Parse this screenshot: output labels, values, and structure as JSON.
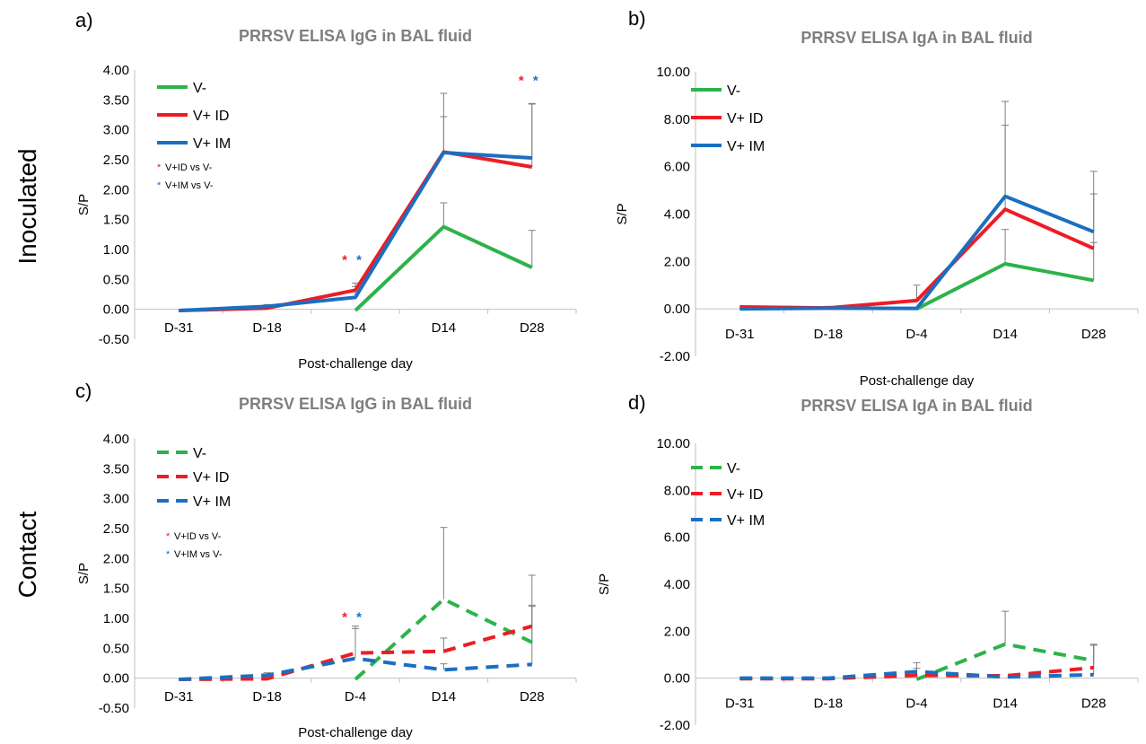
{
  "colors": {
    "V-": "#2db34a",
    "V+ ID": "#ee1c25",
    "V+ IM": "#1a6fc0",
    "axis": "#bfbfbf",
    "error": "#7f7f7f",
    "title": "#7f7f7f"
  },
  "row_labels": [
    "Inoculated",
    "Contact"
  ],
  "chart_data": [
    {
      "panel": "a)",
      "type": "line",
      "title": "PRRSV ELISA IgG in BAL fluid",
      "xlabel": "Post-challenge day",
      "ylabel": "S/P",
      "categories": [
        "D-31",
        "D-18",
        "D-4",
        "D14",
        "D28"
      ],
      "ylim": [
        -0.5,
        4.0
      ],
      "yticks": [
        "-0.50",
        "0.00",
        "0.50",
        "1.00",
        "1.50",
        "2.00",
        "2.50",
        "3.00",
        "3.50",
        "4.00"
      ],
      "line_style": "solid",
      "legend_position": "top-left",
      "series": [
        {
          "name": "V-",
          "values": [
            null,
            null,
            -0.02,
            1.38,
            0.7
          ],
          "errors": [
            null,
            null,
            null,
            0.4,
            0.62
          ]
        },
        {
          "name": "V+ ID",
          "values": [
            -0.02,
            0.02,
            0.32,
            2.63,
            2.38
          ],
          "errors": [
            null,
            null,
            0.12,
            0.98,
            1.06
          ]
        },
        {
          "name": "V+ IM",
          "values": [
            -0.02,
            0.05,
            0.2,
            2.62,
            2.53
          ],
          "errors": [
            null,
            0.03,
            0.18,
            0.6,
            0.9
          ]
        }
      ],
      "annotations": [
        {
          "symbol": "*",
          "color": "#ee1c25",
          "text": "V+ID vs V-"
        },
        {
          "symbol": "*",
          "color": "#1a6fc0",
          "text": "V+IM vs V-"
        }
      ],
      "stars": [
        {
          "category": "D-4",
          "y": 0.75
        },
        {
          "category": "D28",
          "y": 3.75
        }
      ]
    },
    {
      "panel": "b)",
      "type": "line",
      "title": "PRRSV ELISA IgA in BAL fluid",
      "xlabel": "Post-challenge day",
      "ylabel": "S/P",
      "categories": [
        "D-31",
        "D-18",
        "D-4",
        "D14",
        "D28"
      ],
      "ylim": [
        -2.0,
        10.0
      ],
      "yticks": [
        "-2.00",
        "0.00",
        "2.00",
        "4.00",
        "6.00",
        "8.00",
        "10.00"
      ],
      "line_style": "solid",
      "legend_position": "top-left",
      "series": [
        {
          "name": "V-",
          "values": [
            null,
            null,
            0.0,
            1.9,
            1.2
          ],
          "errors": [
            null,
            null,
            null,
            1.45,
            1.6
          ]
        },
        {
          "name": "V+ ID",
          "values": [
            0.08,
            0.04,
            0.35,
            4.2,
            2.55
          ],
          "errors": [
            null,
            null,
            0.65,
            3.55,
            2.3
          ]
        },
        {
          "name": "V+ IM",
          "values": [
            0.0,
            0.03,
            0.02,
            4.75,
            3.25
          ],
          "errors": [
            null,
            0.08,
            null,
            4.0,
            2.55
          ]
        }
      ],
      "annotations": [],
      "stars": []
    },
    {
      "panel": "c)",
      "type": "line",
      "title": "PRRSV ELISA IgG in BAL fluid",
      "xlabel": "Post-challenge day",
      "ylabel": "S/P",
      "categories": [
        "D-31",
        "D-18",
        "D-4",
        "D14",
        "D28"
      ],
      "ylim": [
        -0.5,
        4.0
      ],
      "yticks": [
        "-0.50",
        "0.00",
        "0.50",
        "1.00",
        "1.50",
        "2.00",
        "2.50",
        "3.00",
        "3.50",
        "4.00"
      ],
      "line_style": "dashed",
      "legend_position": "top-left",
      "series": [
        {
          "name": "V-",
          "values": [
            null,
            null,
            -0.02,
            1.32,
            0.6
          ],
          "errors": [
            null,
            null,
            null,
            1.2,
            1.12
          ]
        },
        {
          "name": "V+ ID",
          "values": [
            -0.02,
            -0.01,
            0.42,
            0.45,
            0.87
          ],
          "errors": [
            null,
            null,
            0.45,
            0.22,
            0.35
          ]
        },
        {
          "name": "V+ IM",
          "values": [
            -0.02,
            0.05,
            0.33,
            0.14,
            0.23
          ],
          "errors": [
            null,
            0.04,
            0.5,
            0.1,
            0.97
          ]
        }
      ],
      "annotations": [
        {
          "symbol": "*",
          "color": "#ee1c25",
          "text": "V+ID vs V-"
        },
        {
          "symbol": "*",
          "color": "#1a6fc0",
          "text": "V+IM vs V-"
        }
      ],
      "stars": [
        {
          "category": "D-4",
          "y": 0.95
        }
      ]
    },
    {
      "panel": "d)",
      "type": "line",
      "title": "PRRSV ELISA IgA in BAL fluid",
      "xlabel": "Post-challenge day",
      "ylabel": "S/P",
      "categories": [
        "D-31",
        "D-18",
        "D-4",
        "D14",
        "D28"
      ],
      "ylim": [
        -2.0,
        10.0
      ],
      "yticks": [
        "-2.00",
        "0.00",
        "2.00",
        "4.00",
        "6.00",
        "8.00",
        "10.00"
      ],
      "line_style": "dashed",
      "legend_position": "top-left",
      "series": [
        {
          "name": "V-",
          "values": [
            null,
            null,
            -0.05,
            1.45,
            0.75
          ],
          "errors": [
            null,
            null,
            null,
            1.4,
            0.7
          ]
        },
        {
          "name": "V+ ID",
          "values": [
            -0.02,
            -0.02,
            0.12,
            0.1,
            0.45
          ],
          "errors": [
            null,
            null,
            0.3,
            null,
            0.95
          ]
        },
        {
          "name": "V+ IM",
          "values": [
            0.0,
            0.0,
            0.28,
            0.05,
            0.15
          ],
          "errors": [
            null,
            null,
            0.38,
            null,
            1.25
          ]
        }
      ],
      "annotations": [],
      "stars": []
    }
  ]
}
